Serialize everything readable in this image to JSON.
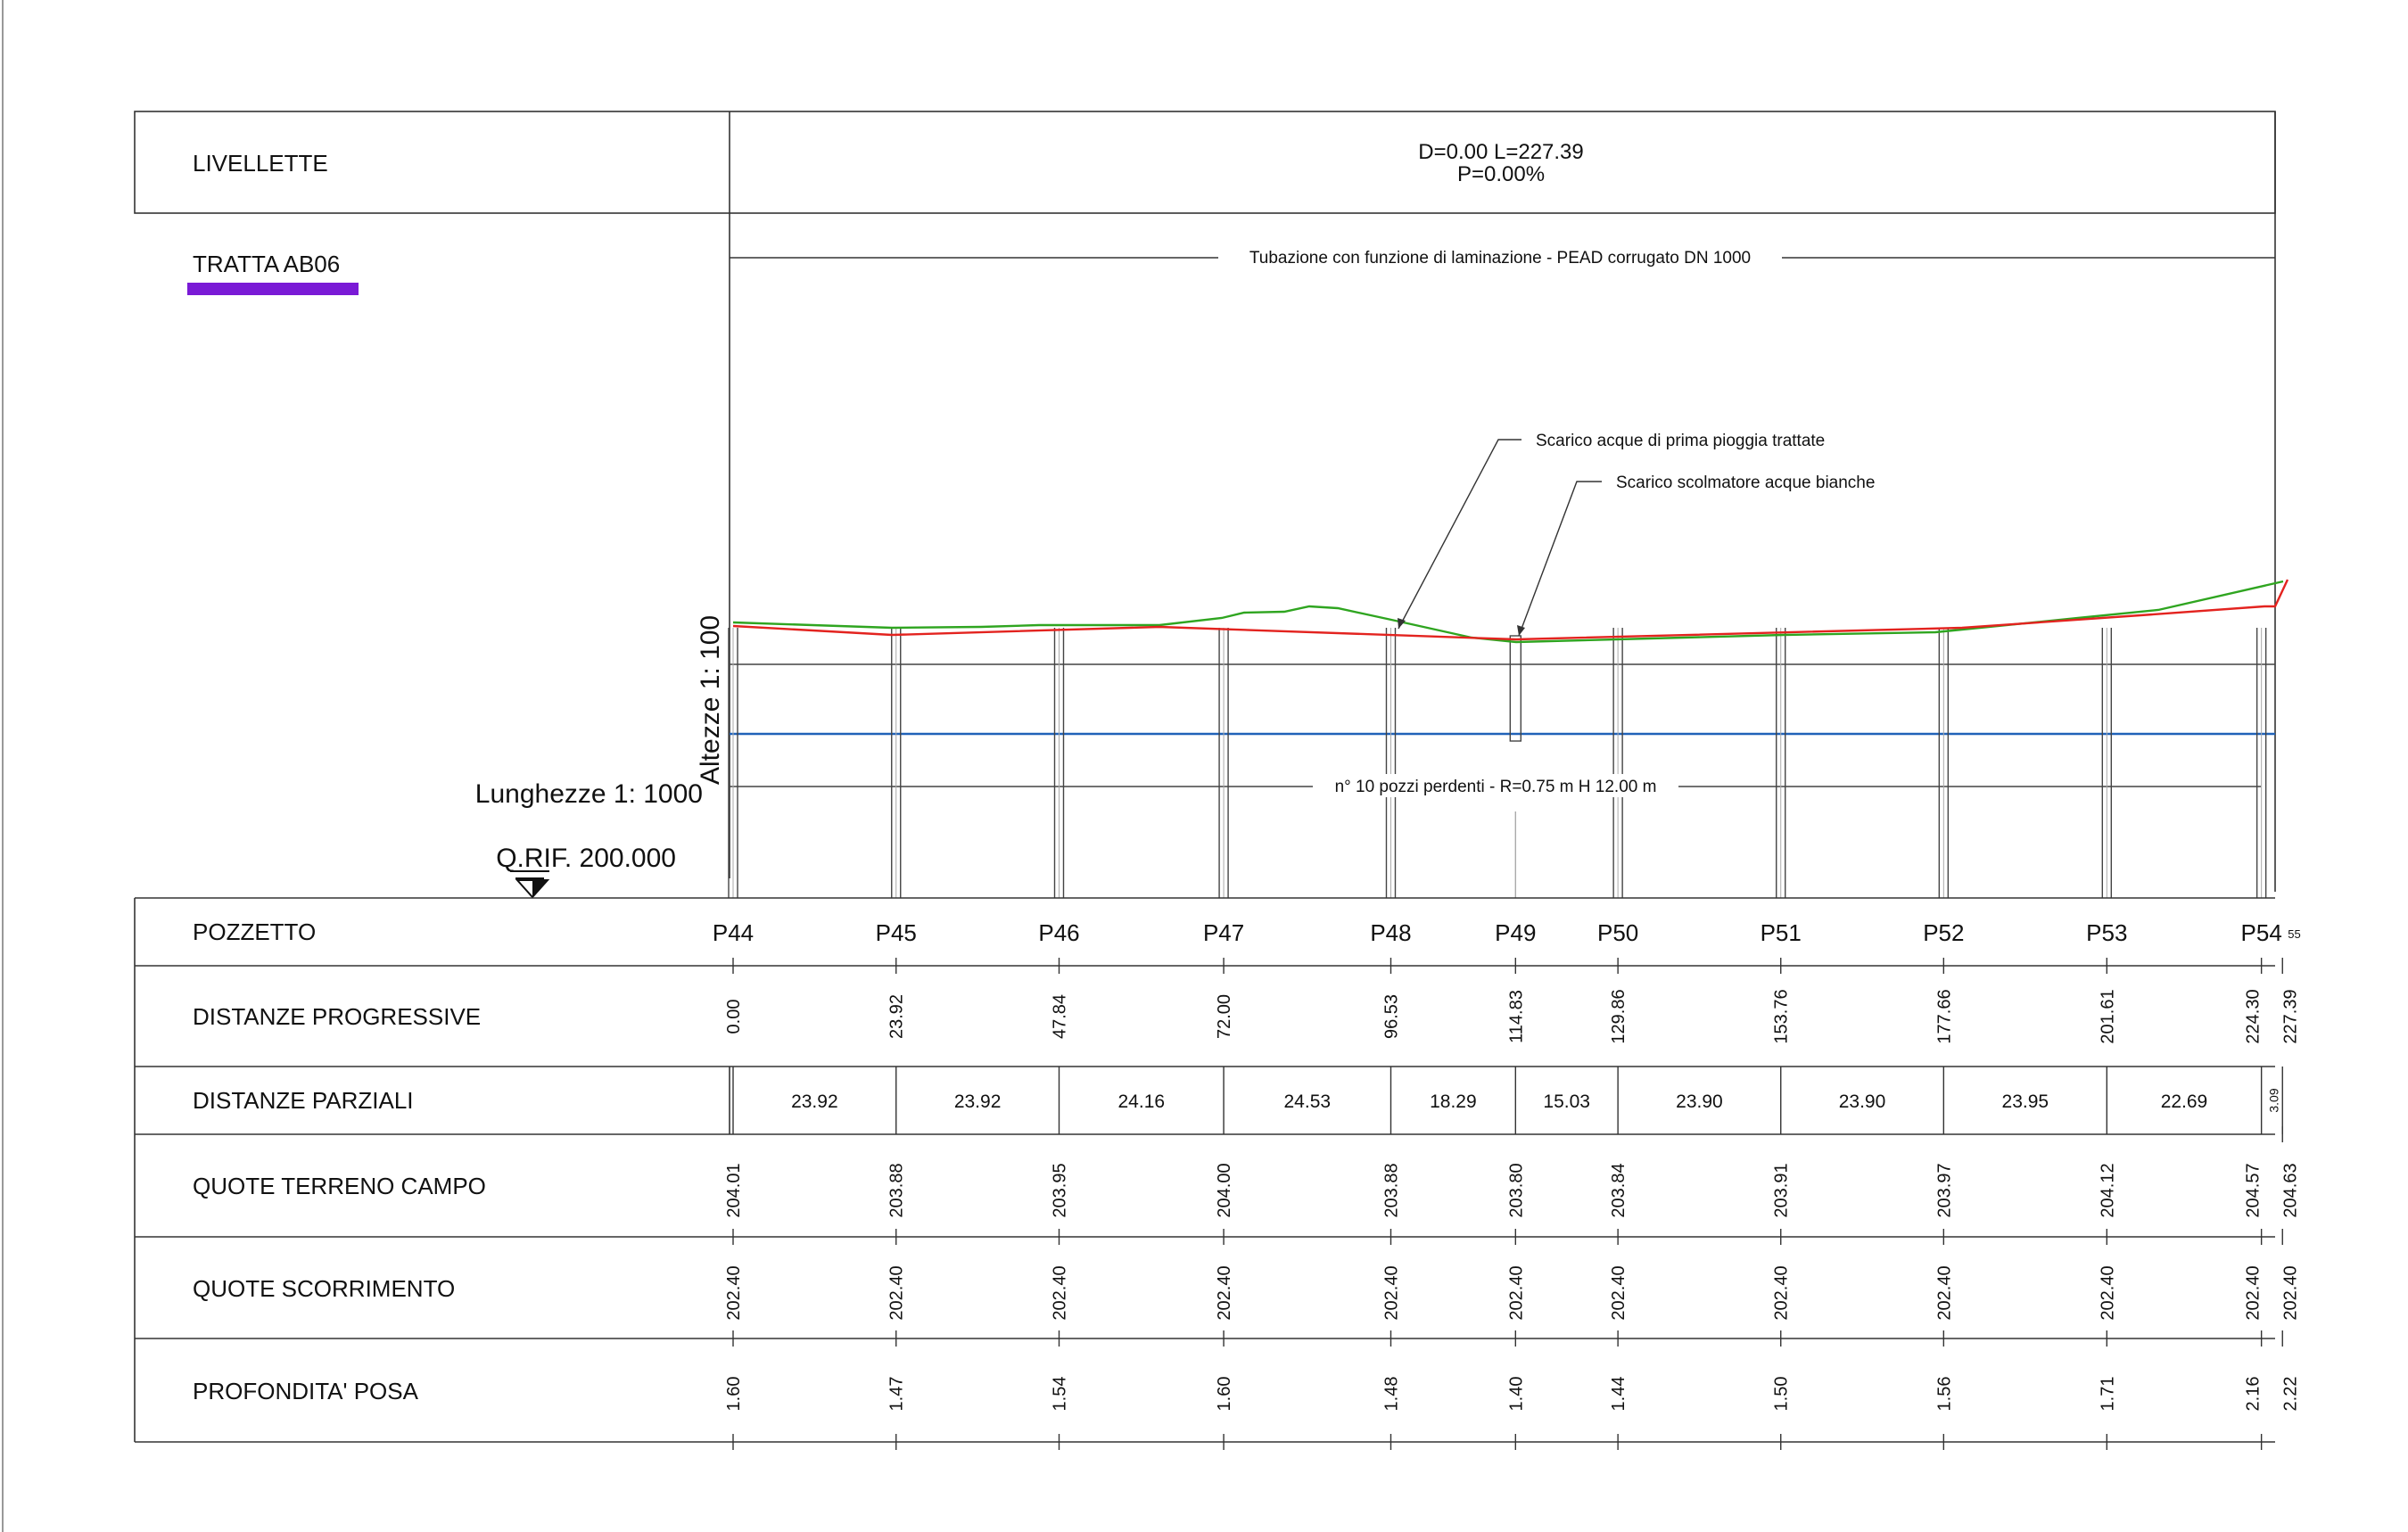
{
  "header": {
    "livellette_label": "LIVELLETTE",
    "slope_line1": "D=0.00 L=227.39",
    "slope_line2": "P=0.00%"
  },
  "legend": {
    "tratta_label": "TRATTA AB06",
    "tratta_color": "#7a1ad6"
  },
  "profile": {
    "pipe_label": "Tubazione con funzione di laminazione - PEAD corrugato DN 1000",
    "callout_1": "Scarico acque di prima pioggia trattate",
    "callout_2": "Scarico scolmatore acque bianche",
    "wells_label": "n° 10 pozzi perdenti - R=0.75 m H 12.00 m",
    "vertical_scale": "Altezze 1: 100",
    "horizontal_scale": "Lunghezze 1: 1000",
    "reference_level": "Q.RIF. 200.000",
    "colors": {
      "ground": "#2fa520",
      "pipe": "#e3231f",
      "water": "#2062b8"
    }
  },
  "table": {
    "rows": {
      "pozzetto": "POZZETTO",
      "progressive": "DISTANZE PROGRESSIVE",
      "parziali": "DISTANZE PARZIALI",
      "terreno": "QUOTE TERRENO CAMPO",
      "scorrimento": "QUOTE SCORRIMENTO",
      "profondita": "PROFONDITA' POSA"
    },
    "stations": [
      {
        "name": "P44",
        "progressive": "0.00",
        "terreno": "204.01",
        "scorrimento": "202.40",
        "profondita": "1.60"
      },
      {
        "name": "P45",
        "progressive": "23.92",
        "terreno": "203.88",
        "scorrimento": "202.40",
        "profondita": "1.47"
      },
      {
        "name": "P46",
        "progressive": "47.84",
        "terreno": "203.95",
        "scorrimento": "202.40",
        "profondita": "1.54"
      },
      {
        "name": "P47",
        "progressive": "72.00",
        "terreno": "204.00",
        "scorrimento": "202.40",
        "profondita": "1.60"
      },
      {
        "name": "P48",
        "progressive": "96.53",
        "terreno": "203.88",
        "scorrimento": "202.40",
        "profondita": "1.48"
      },
      {
        "name": "P49",
        "progressive": "114.83",
        "terreno": "203.80",
        "scorrimento": "202.40",
        "profondita": "1.40"
      },
      {
        "name": "P50",
        "progressive": "129.86",
        "terreno": "203.84",
        "scorrimento": "202.40",
        "profondita": "1.44"
      },
      {
        "name": "P51",
        "progressive": "153.76",
        "terreno": "203.91",
        "scorrimento": "202.40",
        "profondita": "1.50"
      },
      {
        "name": "P52",
        "progressive": "177.66",
        "terreno": "203.97",
        "scorrimento": "202.40",
        "profondita": "1.56"
      },
      {
        "name": "P53",
        "progressive": "201.61",
        "terreno": "204.12",
        "scorrimento": "202.40",
        "profondita": "1.71"
      },
      {
        "name": "P54",
        "progressive": "224.30",
        "terreno": "204.57",
        "scorrimento": "202.40",
        "profondita": "2.16"
      }
    ],
    "end_station": {
      "name": "",
      "progressive": "227.39",
      "terreno": "204.63",
      "scorrimento": "202.40",
      "profondita": "2.22"
    },
    "end_tag": "55",
    "parziali": [
      "23.92",
      "23.92",
      "24.16",
      "24.53",
      "18.29",
      "15.03",
      "23.90",
      "23.90",
      "23.95",
      "22.69",
      "3.09"
    ]
  }
}
